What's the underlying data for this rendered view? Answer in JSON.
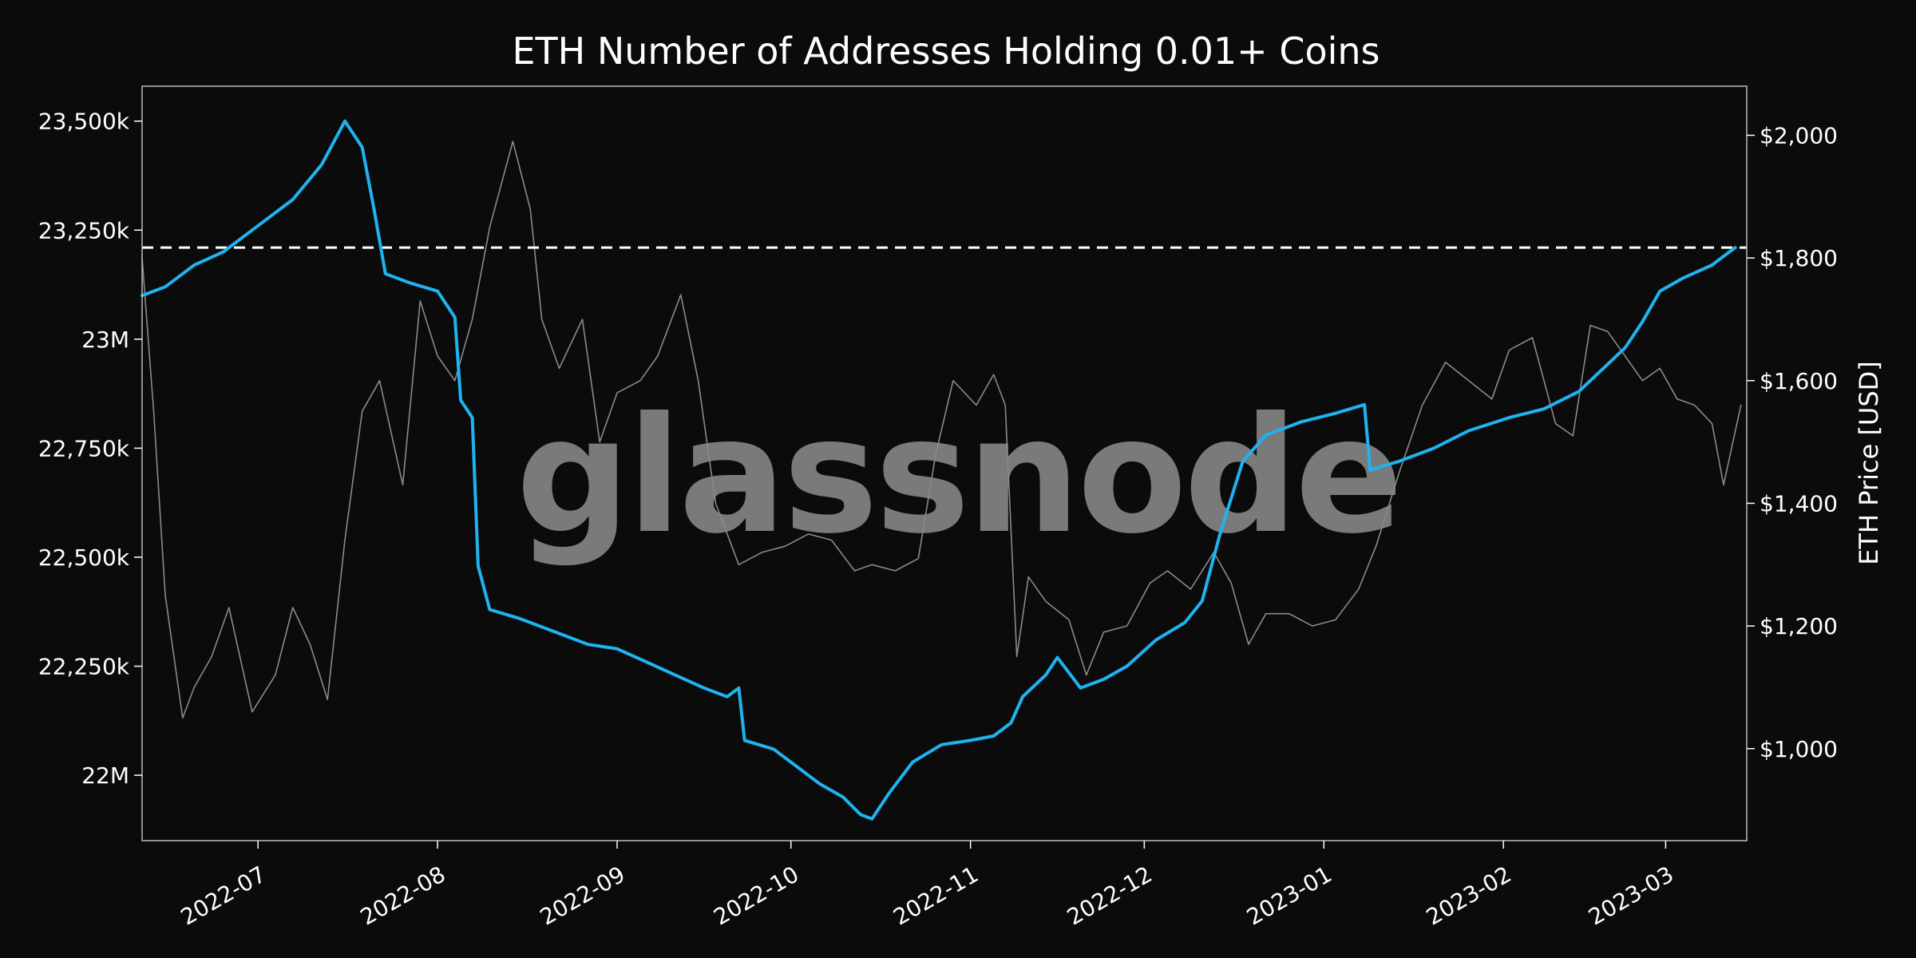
{
  "chart_data": {
    "type": "line",
    "title": "ETH Number of Addresses Holding 0.01+ Coins",
    "xlabel": "",
    "ylabel_left": "",
    "ylabel_right": "ETH Price [USD]",
    "watermark": "glassnode",
    "x_range": [
      "2022-06-11",
      "2023-03-15"
    ],
    "y_left_range": [
      21850000,
      23580000
    ],
    "y_right_range": [
      850,
      2080
    ],
    "x_ticks": [
      {
        "date": "2022-07-01",
        "label": "2022-07"
      },
      {
        "date": "2022-08-01",
        "label": "2022-08"
      },
      {
        "date": "2022-09-01",
        "label": "2022-09"
      },
      {
        "date": "2022-10-01",
        "label": "2022-10"
      },
      {
        "date": "2022-11-01",
        "label": "2022-11"
      },
      {
        "date": "2022-12-01",
        "label": "2022-12"
      },
      {
        "date": "2023-01-01",
        "label": "2023-01"
      },
      {
        "date": "2023-02-01",
        "label": "2023-02"
      },
      {
        "date": "2023-03-01",
        "label": "2023-03"
      }
    ],
    "y_left_ticks": [
      {
        "value": 22000000,
        "label": "22M"
      },
      {
        "value": 22250000,
        "label": "22,250k"
      },
      {
        "value": 22500000,
        "label": "22,500k"
      },
      {
        "value": 22750000,
        "label": "22,750k"
      },
      {
        "value": 23000000,
        "label": "23M"
      },
      {
        "value": 23250000,
        "label": "23,250k"
      },
      {
        "value": 23500000,
        "label": "23,500k"
      }
    ],
    "y_right_ticks": [
      {
        "value": 1000,
        "label": "$1,000"
      },
      {
        "value": 1200,
        "label": "$1,200"
      },
      {
        "value": 1400,
        "label": "$1,400"
      },
      {
        "value": 1600,
        "label": "$1,600"
      },
      {
        "value": 1800,
        "label": "$1,800"
      },
      {
        "value": 2000,
        "label": "$2,000"
      }
    ],
    "reference_line": {
      "axis": "left",
      "value": 23210000,
      "style": "dashed",
      "color": "#ffffff"
    },
    "series": [
      {
        "name": "",
        "axis": "left",
        "color": "#1fb3f0",
        "points": [
          [
            "2022-06-11",
            23100000
          ],
          [
            "2022-06-15",
            23120000
          ],
          [
            "2022-06-20",
            23170000
          ],
          [
            "2022-06-25",
            23200000
          ],
          [
            "2022-07-01",
            23260000
          ],
          [
            "2022-07-07",
            23320000
          ],
          [
            "2022-07-12",
            23400000
          ],
          [
            "2022-07-16",
            23500000
          ],
          [
            "2022-07-19",
            23440000
          ],
          [
            "2022-07-21",
            23300000
          ],
          [
            "2022-07-23",
            23150000
          ],
          [
            "2022-07-27",
            23130000
          ],
          [
            "2022-08-01",
            23110000
          ],
          [
            "2022-08-04",
            23050000
          ],
          [
            "2022-08-05",
            22860000
          ],
          [
            "2022-08-07",
            22820000
          ],
          [
            "2022-08-08",
            22480000
          ],
          [
            "2022-08-10",
            22380000
          ],
          [
            "2022-08-15",
            22360000
          ],
          [
            "2022-08-23",
            22320000
          ],
          [
            "2022-08-27",
            22300000
          ],
          [
            "2022-09-01",
            22290000
          ],
          [
            "2022-09-06",
            22260000
          ],
          [
            "2022-09-11",
            22230000
          ],
          [
            "2022-09-16",
            22200000
          ],
          [
            "2022-09-20",
            22180000
          ],
          [
            "2022-09-22",
            22200000
          ],
          [
            "2022-09-23",
            22080000
          ],
          [
            "2022-09-28",
            22060000
          ],
          [
            "2022-10-02",
            22020000
          ],
          [
            "2022-10-06",
            21980000
          ],
          [
            "2022-10-10",
            21950000
          ],
          [
            "2022-10-13",
            21910000
          ],
          [
            "2022-10-15",
            21900000
          ],
          [
            "2022-10-18",
            21960000
          ],
          [
            "2022-10-22",
            22030000
          ],
          [
            "2022-10-27",
            22070000
          ],
          [
            "2022-11-01",
            22080000
          ],
          [
            "2022-11-05",
            22090000
          ],
          [
            "2022-11-08",
            22120000
          ],
          [
            "2022-11-10",
            22180000
          ],
          [
            "2022-11-14",
            22230000
          ],
          [
            "2022-11-16",
            22270000
          ],
          [
            "2022-11-20",
            22200000
          ],
          [
            "2022-11-24",
            22220000
          ],
          [
            "2022-11-28",
            22250000
          ],
          [
            "2022-12-03",
            22310000
          ],
          [
            "2022-12-08",
            22350000
          ],
          [
            "2022-12-11",
            22400000
          ],
          [
            "2022-12-14",
            22550000
          ],
          [
            "2022-12-18",
            22720000
          ],
          [
            "2022-12-22",
            22780000
          ],
          [
            "2022-12-28",
            22810000
          ],
          [
            "2023-01-03",
            22830000
          ],
          [
            "2023-01-08",
            22850000
          ],
          [
            "2023-01-09",
            22700000
          ],
          [
            "2023-01-14",
            22720000
          ],
          [
            "2023-01-20",
            22750000
          ],
          [
            "2023-01-26",
            22790000
          ],
          [
            "2023-02-02",
            22820000
          ],
          [
            "2023-02-08",
            22840000
          ],
          [
            "2023-02-14",
            22880000
          ],
          [
            "2023-02-18",
            22930000
          ],
          [
            "2023-02-22",
            22980000
          ],
          [
            "2023-02-25",
            23040000
          ],
          [
            "2023-02-28",
            23110000
          ],
          [
            "2023-03-04",
            23140000
          ],
          [
            "2023-03-09",
            23170000
          ],
          [
            "2023-03-13",
            23210000
          ]
        ]
      },
      {
        "name": "",
        "axis": "right",
        "color": "#8a8a8a",
        "points": [
          [
            "2022-06-11",
            1800
          ],
          [
            "2022-06-13",
            1550
          ],
          [
            "2022-06-15",
            1250
          ],
          [
            "2022-06-18",
            1050
          ],
          [
            "2022-06-20",
            1100
          ],
          [
            "2022-06-23",
            1150
          ],
          [
            "2022-06-26",
            1230
          ],
          [
            "2022-06-30",
            1060
          ],
          [
            "2022-07-04",
            1120
          ],
          [
            "2022-07-07",
            1230
          ],
          [
            "2022-07-10",
            1170
          ],
          [
            "2022-07-13",
            1080
          ],
          [
            "2022-07-16",
            1340
          ],
          [
            "2022-07-19",
            1550
          ],
          [
            "2022-07-22",
            1600
          ],
          [
            "2022-07-26",
            1430
          ],
          [
            "2022-07-29",
            1730
          ],
          [
            "2022-08-01",
            1640
          ],
          [
            "2022-08-04",
            1600
          ],
          [
            "2022-08-07",
            1700
          ],
          [
            "2022-08-10",
            1850
          ],
          [
            "2022-08-14",
            1990
          ],
          [
            "2022-08-17",
            1880
          ],
          [
            "2022-08-19",
            1700
          ],
          [
            "2022-08-22",
            1620
          ],
          [
            "2022-08-26",
            1700
          ],
          [
            "2022-08-29",
            1500
          ],
          [
            "2022-09-01",
            1580
          ],
          [
            "2022-09-05",
            1600
          ],
          [
            "2022-09-08",
            1640
          ],
          [
            "2022-09-12",
            1740
          ],
          [
            "2022-09-15",
            1600
          ],
          [
            "2022-09-18",
            1400
          ],
          [
            "2022-09-22",
            1300
          ],
          [
            "2022-09-26",
            1320
          ],
          [
            "2022-09-30",
            1330
          ],
          [
            "2022-10-04",
            1350
          ],
          [
            "2022-10-08",
            1340
          ],
          [
            "2022-10-12",
            1290
          ],
          [
            "2022-10-15",
            1300
          ],
          [
            "2022-10-19",
            1290
          ],
          [
            "2022-10-23",
            1310
          ],
          [
            "2022-10-26",
            1480
          ],
          [
            "2022-10-29",
            1600
          ],
          [
            "2022-11-02",
            1560
          ],
          [
            "2022-11-05",
            1610
          ],
          [
            "2022-11-07",
            1560
          ],
          [
            "2022-11-09",
            1150
          ],
          [
            "2022-11-11",
            1280
          ],
          [
            "2022-11-14",
            1240
          ],
          [
            "2022-11-18",
            1210
          ],
          [
            "2022-11-21",
            1120
          ],
          [
            "2022-11-24",
            1190
          ],
          [
            "2022-11-28",
            1200
          ],
          [
            "2022-12-02",
            1270
          ],
          [
            "2022-12-05",
            1290
          ],
          [
            "2022-12-09",
            1260
          ],
          [
            "2022-12-13",
            1320
          ],
          [
            "2022-12-16",
            1270
          ],
          [
            "2022-12-19",
            1170
          ],
          [
            "2022-12-22",
            1220
          ],
          [
            "2022-12-26",
            1220
          ],
          [
            "2022-12-30",
            1200
          ],
          [
            "2023-01-03",
            1210
          ],
          [
            "2023-01-07",
            1260
          ],
          [
            "2023-01-10",
            1330
          ],
          [
            "2023-01-14",
            1450
          ],
          [
            "2023-01-18",
            1560
          ],
          [
            "2023-01-22",
            1630
          ],
          [
            "2023-01-26",
            1600
          ],
          [
            "2023-01-30",
            1570
          ],
          [
            "2023-02-02",
            1650
          ],
          [
            "2023-02-06",
            1670
          ],
          [
            "2023-02-10",
            1530
          ],
          [
            "2023-02-13",
            1510
          ],
          [
            "2023-02-16",
            1690
          ],
          [
            "2023-02-19",
            1680
          ],
          [
            "2023-02-22",
            1640
          ],
          [
            "2023-02-25",
            1600
          ],
          [
            "2023-02-28",
            1620
          ],
          [
            "2023-03-03",
            1570
          ],
          [
            "2023-03-06",
            1560
          ],
          [
            "2023-03-09",
            1530
          ],
          [
            "2023-03-11",
            1430
          ],
          [
            "2023-03-14",
            1560
          ]
        ]
      }
    ]
  }
}
